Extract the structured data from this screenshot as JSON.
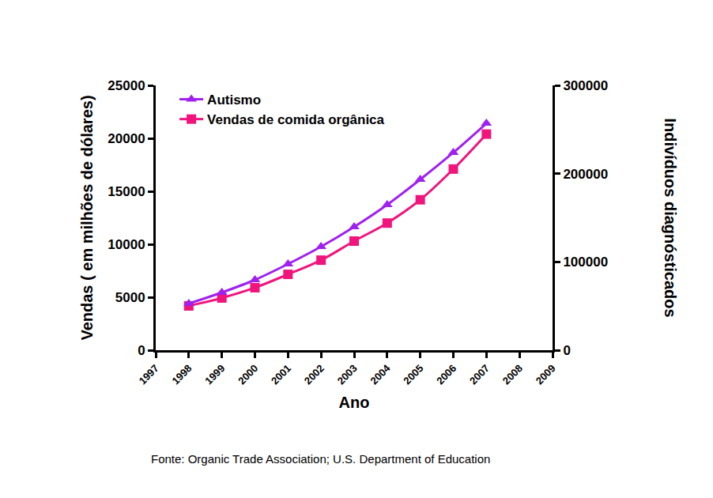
{
  "chart_data": {
    "type": "line",
    "x_title": "Ano",
    "y_title": "Vendas ( em milhões de dólares)",
    "y2_title": "Indivíduos diagnósticados",
    "source": "Fonte: Organic Trade Association; U.S. Department of Education",
    "x": [
      1998,
      1999,
      2000,
      2001,
      2002,
      2003,
      2004,
      2005,
      2006,
      2007
    ],
    "series": [
      {
        "name": "Autismo",
        "color": "#a020f0",
        "marker": "triangle-up",
        "line_style": "solid",
        "axis": "y2",
        "values": [
          52800,
          65400,
          79700,
          97600,
          117300,
          139700,
          164800,
          193400,
          223900,
          257000
        ]
      },
      {
        "name": "Vendas de comida orgânica",
        "color": "#f0147c",
        "marker": "square",
        "line_style": "solid",
        "axis": "y",
        "values": [
          4180,
          4930,
          5900,
          7160,
          8500,
          10300,
          12000,
          14200,
          17100,
          20400
        ]
      }
    ],
    "xlim": [
      1997,
      2009
    ],
    "xticks": [
      1997,
      1998,
      1999,
      2000,
      2001,
      2002,
      2003,
      2004,
      2005,
      2006,
      2007,
      2008,
      2009
    ],
    "ylim": [
      0,
      25000
    ],
    "yticks": [
      0,
      5000,
      10000,
      15000,
      20000,
      25000
    ],
    "y2lim": [
      0,
      300000
    ],
    "y2ticks": [
      0,
      100000,
      200000,
      300000
    ],
    "grid": false,
    "legend": "top-left"
  }
}
